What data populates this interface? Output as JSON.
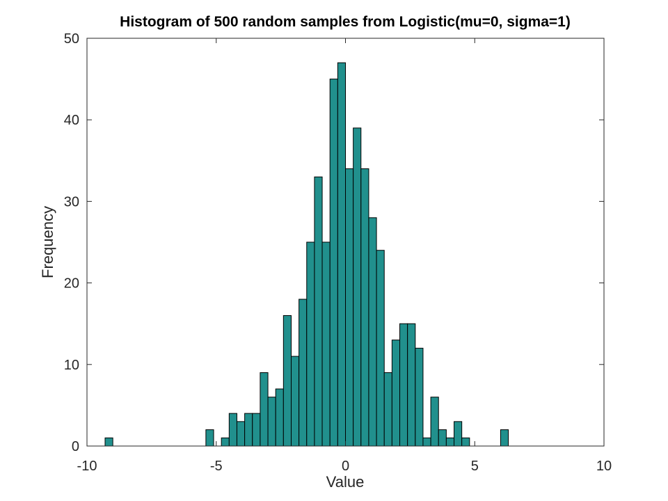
{
  "chart_data": {
    "type": "bar",
    "title": "Histogram of 500 random samples from Logistic(mu=0, sigma=1)",
    "xlabel": "Value",
    "ylabel": "Frequency",
    "xlim": [
      -10,
      10
    ],
    "ylim": [
      0,
      50
    ],
    "xticks": [
      -10,
      -5,
      0,
      5,
      10
    ],
    "yticks": [
      0,
      10,
      20,
      30,
      40,
      50
    ],
    "grid": false,
    "bar_color": "#21908d",
    "edge_color": "#000000",
    "bin_width": 0.3,
    "bins": [
      {
        "x": -9.15,
        "count": 1
      },
      {
        "x": -5.25,
        "count": 2
      },
      {
        "x": -4.65,
        "count": 1
      },
      {
        "x": -4.35,
        "count": 4
      },
      {
        "x": -4.05,
        "count": 3
      },
      {
        "x": -3.75,
        "count": 4
      },
      {
        "x": -3.45,
        "count": 4
      },
      {
        "x": -3.15,
        "count": 9
      },
      {
        "x": -2.85,
        "count": 6
      },
      {
        "x": -2.55,
        "count": 7
      },
      {
        "x": -2.25,
        "count": 16
      },
      {
        "x": -1.95,
        "count": 11
      },
      {
        "x": -1.65,
        "count": 18
      },
      {
        "x": -1.35,
        "count": 25
      },
      {
        "x": -1.05,
        "count": 33
      },
      {
        "x": -0.75,
        "count": 25
      },
      {
        "x": -0.45,
        "count": 45
      },
      {
        "x": -0.15,
        "count": 47
      },
      {
        "x": 0.15,
        "count": 34
      },
      {
        "x": 0.45,
        "count": 39
      },
      {
        "x": 0.75,
        "count": 34
      },
      {
        "x": 1.05,
        "count": 28
      },
      {
        "x": 1.35,
        "count": 24
      },
      {
        "x": 1.65,
        "count": 9
      },
      {
        "x": 1.95,
        "count": 13
      },
      {
        "x": 2.25,
        "count": 15
      },
      {
        "x": 2.55,
        "count": 15
      },
      {
        "x": 2.85,
        "count": 12
      },
      {
        "x": 3.15,
        "count": 1
      },
      {
        "x": 3.45,
        "count": 6
      },
      {
        "x": 3.75,
        "count": 2
      },
      {
        "x": 4.05,
        "count": 1
      },
      {
        "x": 4.35,
        "count": 3
      },
      {
        "x": 4.65,
        "count": 1
      },
      {
        "x": 6.15,
        "count": 2
      }
    ]
  }
}
